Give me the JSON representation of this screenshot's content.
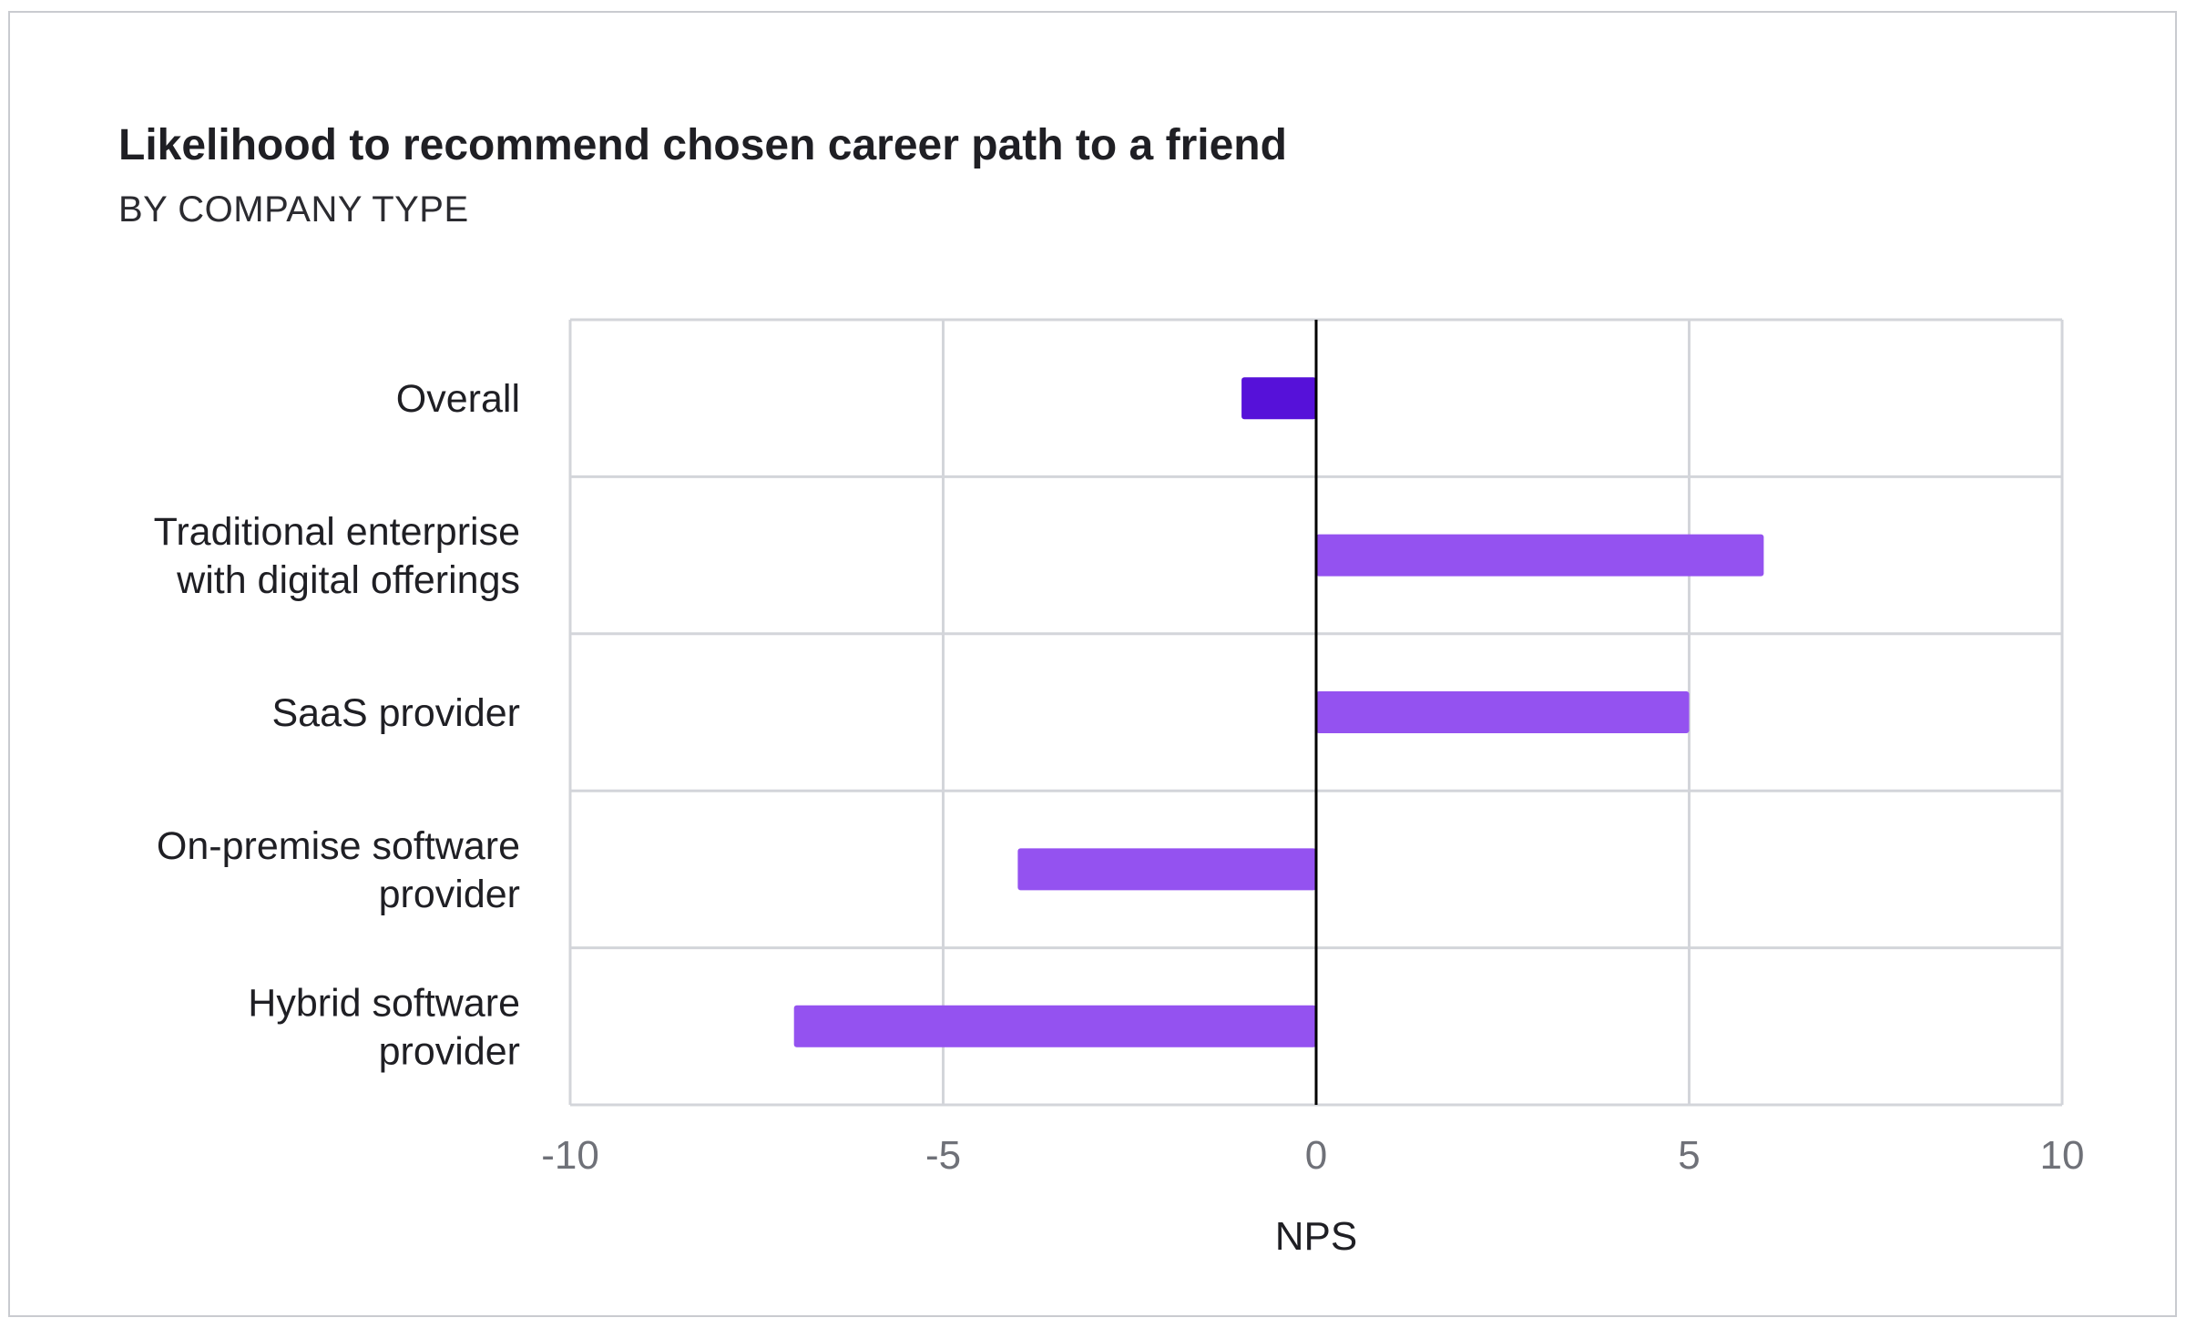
{
  "chart_data": {
    "type": "bar",
    "orientation": "horizontal",
    "title": "Likelihood to recommend chosen career path to a friend",
    "subtitle": "BY COMPANY TYPE",
    "xlabel": "NPS",
    "ylabel": "",
    "xlim": [
      -10,
      10
    ],
    "xticks": [
      -10,
      -5,
      0,
      5,
      10
    ],
    "xtick_labels": [
      "-10",
      "-5",
      "0",
      "5",
      "10"
    ],
    "grid": true,
    "legend": "none",
    "categories": [
      [
        "Overall"
      ],
      [
        "Traditional enterprise",
        "with digital offerings"
      ],
      [
        "SaaS provider"
      ],
      [
        "On-premise software",
        "provider"
      ],
      [
        "Hybrid software",
        "provider"
      ]
    ],
    "values": [
      -1,
      6,
      5,
      -4,
      -7
    ],
    "colors": {
      "overall": "#5611d9",
      "segment": "#9452f0",
      "grid": "#d3d5da",
      "zero_line": "#000000"
    }
  }
}
